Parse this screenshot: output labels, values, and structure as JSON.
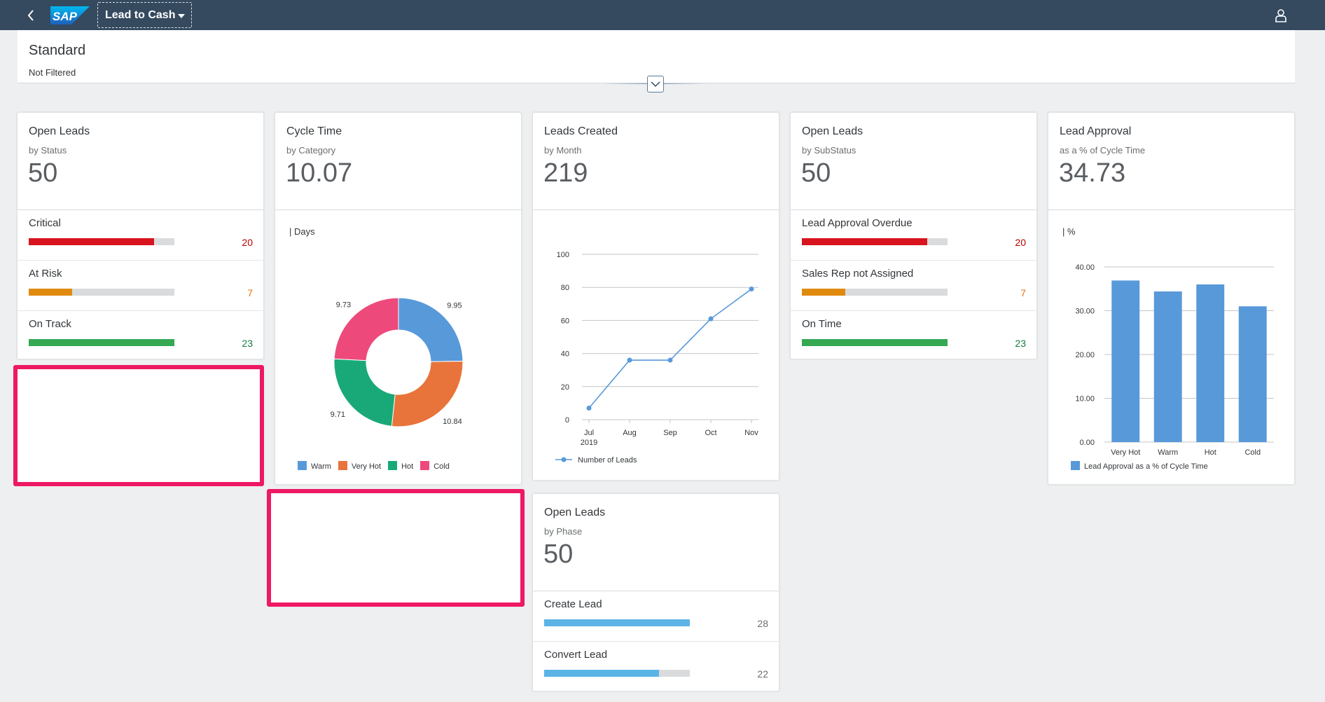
{
  "shell": {
    "app_title": "Lead to Cash",
    "logo_text": "SAP"
  },
  "header": {
    "variant": "Standard",
    "filter_status": "Not Filtered"
  },
  "cards": {
    "open_leads_status": {
      "title": "Open Leads",
      "subtitle": "by Status",
      "kpi": "50",
      "rows": [
        {
          "label": "Critical",
          "value": "20",
          "fraction": 0.86,
          "color": "#d8141f",
          "value_color": "#bb0000"
        },
        {
          "label": "At Risk",
          "value": "7",
          "fraction": 0.3,
          "color": "#df8a0e",
          "value_color": "#e9730c"
        },
        {
          "label": "On Track",
          "value": "23",
          "fraction": 1.0,
          "color": "#34a853",
          "value_color": "#107e3e"
        }
      ]
    },
    "cycle_time": {
      "title": "Cycle Time",
      "subtitle": "by Category",
      "kpi": "10.07",
      "unit": "| Days"
    },
    "leads_created": {
      "title": "Leads Created",
      "subtitle": "by Month",
      "kpi": "219"
    },
    "open_leads_substatus": {
      "title": "Open Leads",
      "subtitle": "by SubStatus",
      "kpi": "50",
      "rows": [
        {
          "label": "Lead Approval Overdue",
          "value": "20",
          "fraction": 0.86,
          "color": "#d8141f",
          "value_color": "#bb0000"
        },
        {
          "label": "Sales Rep not Assigned",
          "value": "7",
          "fraction": 0.3,
          "color": "#df8a0e",
          "value_color": "#e9730c"
        },
        {
          "label": "On Time",
          "value": "23",
          "fraction": 1.0,
          "color": "#34a853",
          "value_color": "#107e3e"
        }
      ]
    },
    "lead_approval": {
      "title": "Lead Approval",
      "subtitle": "as a % of Cycle Time",
      "kpi": "34.73",
      "unit": "| %"
    },
    "open_leads_phase": {
      "title": "Open Leads",
      "subtitle": "by Phase",
      "kpi": "50",
      "rows": [
        {
          "label": "Create Lead",
          "value": "28",
          "fraction": 1.0,
          "color": "#5cb4e6",
          "value_color": "#6a6d70"
        },
        {
          "label": "Convert Lead",
          "value": "22",
          "fraction": 0.79,
          "color": "#5cb4e6",
          "value_color": "#6a6d70"
        }
      ]
    }
  },
  "chart_data": [
    {
      "id": "cycle_time_donut",
      "type": "pie",
      "donut": true,
      "title": "Cycle Time by Category",
      "unit": "Days",
      "categories": [
        "Warm",
        "Very Hot",
        "Hot",
        "Cold"
      ],
      "values": [
        9.95,
        10.84,
        9.71,
        9.73
      ],
      "colors": [
        "#5899da",
        "#e8743b",
        "#19a979",
        "#ed4a7b"
      ],
      "labels": [
        "9.95",
        "10.84",
        "9.71",
        "9.73"
      ]
    },
    {
      "id": "leads_created_line",
      "type": "line",
      "title": "Leads Created by Month",
      "x": [
        "Jul",
        "Aug",
        "Sep",
        "Oct",
        "Nov"
      ],
      "x_sub": [
        "2019",
        "",
        "",
        "",
        ""
      ],
      "series": [
        {
          "name": "Number of Leads",
          "values": [
            7,
            36,
            36,
            61,
            79
          ],
          "color": "#5899da"
        }
      ],
      "ylim": [
        0,
        100
      ],
      "yticks": [
        "0",
        "20",
        "40",
        "60",
        "80",
        "100"
      ]
    },
    {
      "id": "lead_approval_bar",
      "type": "bar",
      "title": "Lead Approval as a % of Cycle Time",
      "categories": [
        "Very Hot",
        "Warm",
        "Hot",
        "Cold"
      ],
      "series": [
        {
          "name": "Lead Approval as a % of Cycle Time",
          "values": [
            36.9,
            34.4,
            36.0,
            31.0
          ],
          "color": "#5899da"
        }
      ],
      "ylim": [
        0,
        40
      ],
      "yticks": [
        "0.00",
        "10.00",
        "20.00",
        "30.00",
        "40.00"
      ]
    }
  ]
}
